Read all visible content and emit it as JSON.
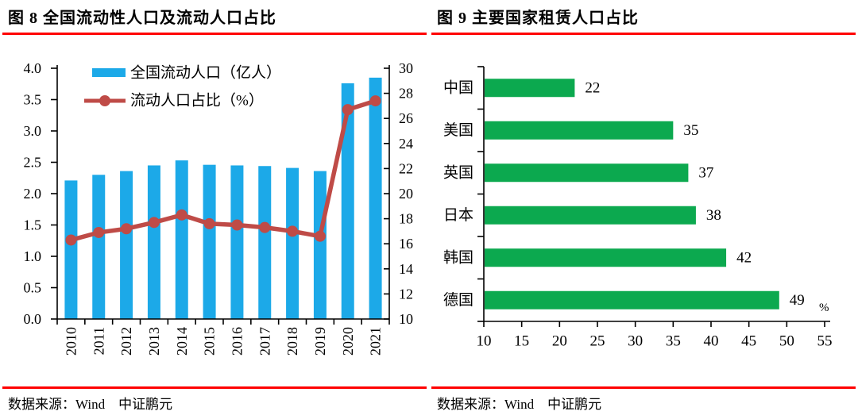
{
  "colors": {
    "rule_red": "#FF0000",
    "bar_blue": "#1CA9E8",
    "line_red": "#BF4B47",
    "bar_green": "#0CA94F",
    "axis_black": "#000000"
  },
  "figures": [
    {
      "id": "figure8",
      "title": "图 8  全国流动性人口及流动人口占比",
      "source_label": "数据来源：Wind　中证鹏元"
    },
    {
      "id": "figure9",
      "title": "图 9  主要国家租赁人口占比",
      "source_label": "数据来源：Wind　中证鹏元"
    }
  ],
  "chart_data": [
    {
      "type": "bar",
      "subtype": "combo-bar-line",
      "title": "图 8 全国流动性人口及流动人口占比",
      "categories": [
        "2010",
        "2011",
        "2012",
        "2013",
        "2014",
        "2015",
        "2016",
        "2017",
        "2018",
        "2019",
        "2020",
        "2021"
      ],
      "series": [
        {
          "name": "全国流动人口（亿人）",
          "type": "bar",
          "y_axis": "left",
          "color_key": "bar_blue",
          "values": [
            2.21,
            2.3,
            2.36,
            2.45,
            2.53,
            2.46,
            2.45,
            2.44,
            2.41,
            2.36,
            3.76,
            3.85
          ]
        },
        {
          "name": "流动人口占比（%）",
          "type": "line",
          "y_axis": "right",
          "color_key": "line_red",
          "values": [
            16.3,
            16.9,
            17.2,
            17.7,
            18.3,
            17.6,
            17.5,
            17.3,
            17.0,
            16.6,
            26.7,
            27.4
          ]
        }
      ],
      "left_axis": {
        "min": 0,
        "max": 4,
        "step": 0.5,
        "decimals": 1
      },
      "right_axis": {
        "min": 10,
        "max": 30,
        "step": 2,
        "decimals": 0
      },
      "legend_position": "inside-top-left",
      "grid": false
    },
    {
      "type": "bar",
      "orientation": "horizontal",
      "title": "图 9 主要国家租赁人口占比",
      "categories": [
        "中国",
        "美国",
        "英国",
        "日本",
        "韩国",
        "德国"
      ],
      "values": [
        22,
        35,
        37,
        38,
        42,
        49
      ],
      "x_axis": {
        "min": 10,
        "max": 55,
        "step": 5,
        "unit": "%"
      },
      "color_key": "bar_green",
      "show_data_labels": true,
      "grid": false
    }
  ]
}
